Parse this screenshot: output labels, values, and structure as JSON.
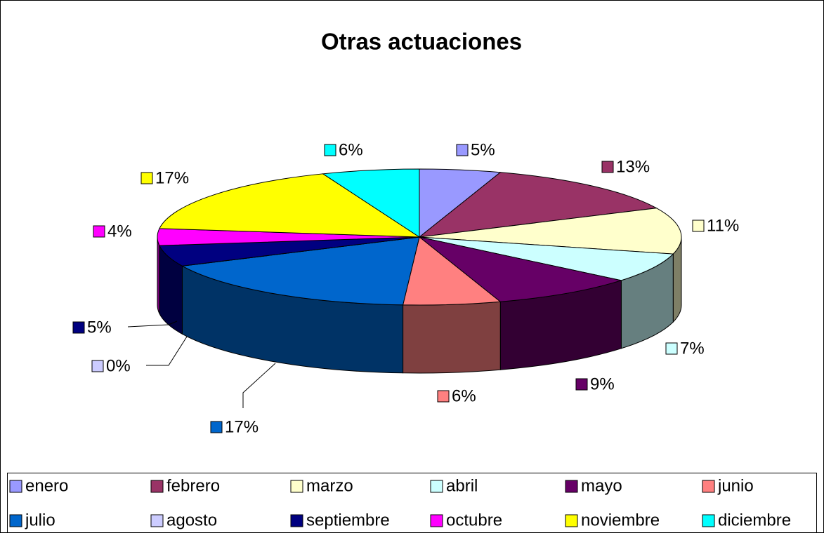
{
  "chart_data": {
    "type": "pie",
    "title": "Otras actuaciones",
    "categories": [
      "enero",
      "febrero",
      "marzo",
      "abril",
      "mayo",
      "junio",
      "julio",
      "agosto",
      "septiembre",
      "octubre",
      "noviembre",
      "diciembre"
    ],
    "values": [
      5,
      13,
      11,
      7,
      9,
      6,
      17,
      0,
      5,
      4,
      17,
      6
    ],
    "value_labels": [
      "5%",
      "13%",
      "11%",
      "7%",
      "9%",
      "6%",
      "17%",
      "0%",
      "5%",
      "4%",
      "17%",
      "6%"
    ],
    "colors": [
      "#9999ff",
      "#993366",
      "#ffffcc",
      "#ccffff",
      "#660066",
      "#ff8080",
      "#0066cc",
      "#ccccff",
      "#000080",
      "#ff00ff",
      "#ffff00",
      "#00ffff"
    ],
    "legend": "bottom"
  }
}
